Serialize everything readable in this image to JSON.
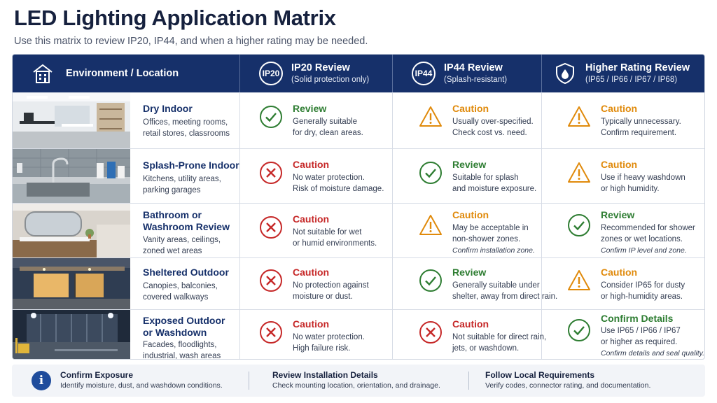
{
  "title": "LED Lighting Application Matrix",
  "subtitle": "Use this matrix to review IP20, IP44, and when a higher rating may be needed.",
  "header": {
    "environment": "Environment / Location",
    "ip20": {
      "badge": "IP20",
      "title": "IP20 Review",
      "sub": "(Solid protection only)"
    },
    "ip44": {
      "badge": "IP44",
      "title": "IP44 Review",
      "sub": "(Splash-resistant)"
    },
    "higher": {
      "title": "Higher Rating Review",
      "sub": "(IP65 / IP66 / IP67 / IP68)"
    }
  },
  "rows": [
    {
      "name": "Dry Indoor",
      "desc": [
        "Offices, meeting rooms,",
        "retail stores, classrooms"
      ],
      "ip20": {
        "status": "check",
        "label": "Review",
        "lines": [
          "Generally suitable",
          "for dry, clean areas."
        ],
        "note": ""
      },
      "ip44": {
        "status": "warning",
        "label": "Caution",
        "lines": [
          "Usually over-specified.",
          "Check cost vs. need."
        ],
        "note": ""
      },
      "higher": {
        "status": "warning",
        "label": "Caution",
        "lines": [
          "Typically unnecessary.",
          "Confirm requirement."
        ],
        "note": ""
      }
    },
    {
      "name": "Splash-Prone Indoor",
      "desc": [
        "Kitchens, utility areas,",
        "parking garages"
      ],
      "ip20": {
        "status": "cross",
        "label": "Caution",
        "lines": [
          "No water protection.",
          "Risk of moisture damage."
        ],
        "note": ""
      },
      "ip44": {
        "status": "check",
        "label": "Review",
        "lines": [
          "Suitable for splash",
          "and moisture exposure."
        ],
        "note": ""
      },
      "higher": {
        "status": "warning",
        "label": "Caution",
        "lines": [
          "Use if heavy washdown",
          "or high humidity."
        ],
        "note": ""
      }
    },
    {
      "name": "Bathroom or Washroom Review",
      "name_lines": [
        "Bathroom or",
        "Washroom Review"
      ],
      "desc": [
        "Vanity areas, ceilings,",
        "zoned wet areas"
      ],
      "ip20": {
        "status": "cross",
        "label": "Caution",
        "lines": [
          "Not suitable for wet",
          "or humid environments."
        ],
        "note": ""
      },
      "ip44": {
        "status": "warning",
        "label": "Caution",
        "lines": [
          "May be acceptable in",
          "non-shower zones."
        ],
        "note": "Confirm installation zone."
      },
      "higher": {
        "status": "check",
        "label": "Review",
        "lines": [
          "Recommended for shower",
          "zones or wet locations."
        ],
        "note": "Confirm IP level and zone."
      }
    },
    {
      "name": "Sheltered Outdoor",
      "desc": [
        "Canopies, balconies,",
        "covered walkways"
      ],
      "ip20": {
        "status": "cross",
        "label": "Caution",
        "lines": [
          "No protection against",
          "moisture or dust."
        ],
        "note": ""
      },
      "ip44": {
        "status": "check",
        "label": "Review",
        "lines": [
          "Generally suitable under",
          "shelter, away from direct rain."
        ],
        "note": ""
      },
      "higher": {
        "status": "warning",
        "label": "Caution",
        "lines": [
          "Consider IP65 for dusty",
          "or high-humidity areas."
        ],
        "note": ""
      }
    },
    {
      "name": "Exposed Outdoor or Washdown",
      "name_lines": [
        "Exposed Outdoor",
        "or Washdown"
      ],
      "desc": [
        "Facades, floodlights,",
        "industrial, wash areas"
      ],
      "ip20": {
        "status": "cross",
        "label": "Caution",
        "lines": [
          "No water protection.",
          "High failure risk."
        ],
        "note": ""
      },
      "ip44": {
        "status": "cross",
        "label": "Caution",
        "lines": [
          "Not suitable for direct rain,",
          "jets, or washdown."
        ],
        "note": ""
      },
      "higher": {
        "status": "check",
        "label": "Confirm Details",
        "lines": [
          "Use IP65 / IP66 / IP67",
          "or higher as required."
        ],
        "note": "Confirm details and seal quality."
      }
    }
  ],
  "footer": [
    {
      "title": "Confirm Exposure",
      "desc": "Identify moisture, dust, and washdown conditions."
    },
    {
      "title": "Review Installation Details",
      "desc": "Check mounting location, orientation, and drainage."
    },
    {
      "title": "Follow Local Requirements",
      "desc": "Verify codes, connector rating, and documentation."
    }
  ],
  "colors": {
    "header_bg": "#16306a",
    "check": "#2e7d32",
    "warning": "#e08a0b",
    "cross": "#c62828",
    "info": "#1f4c9c"
  },
  "icons": {
    "environment": "building-icon",
    "higher": "shield-drop-icon",
    "footer": "info-icon"
  }
}
